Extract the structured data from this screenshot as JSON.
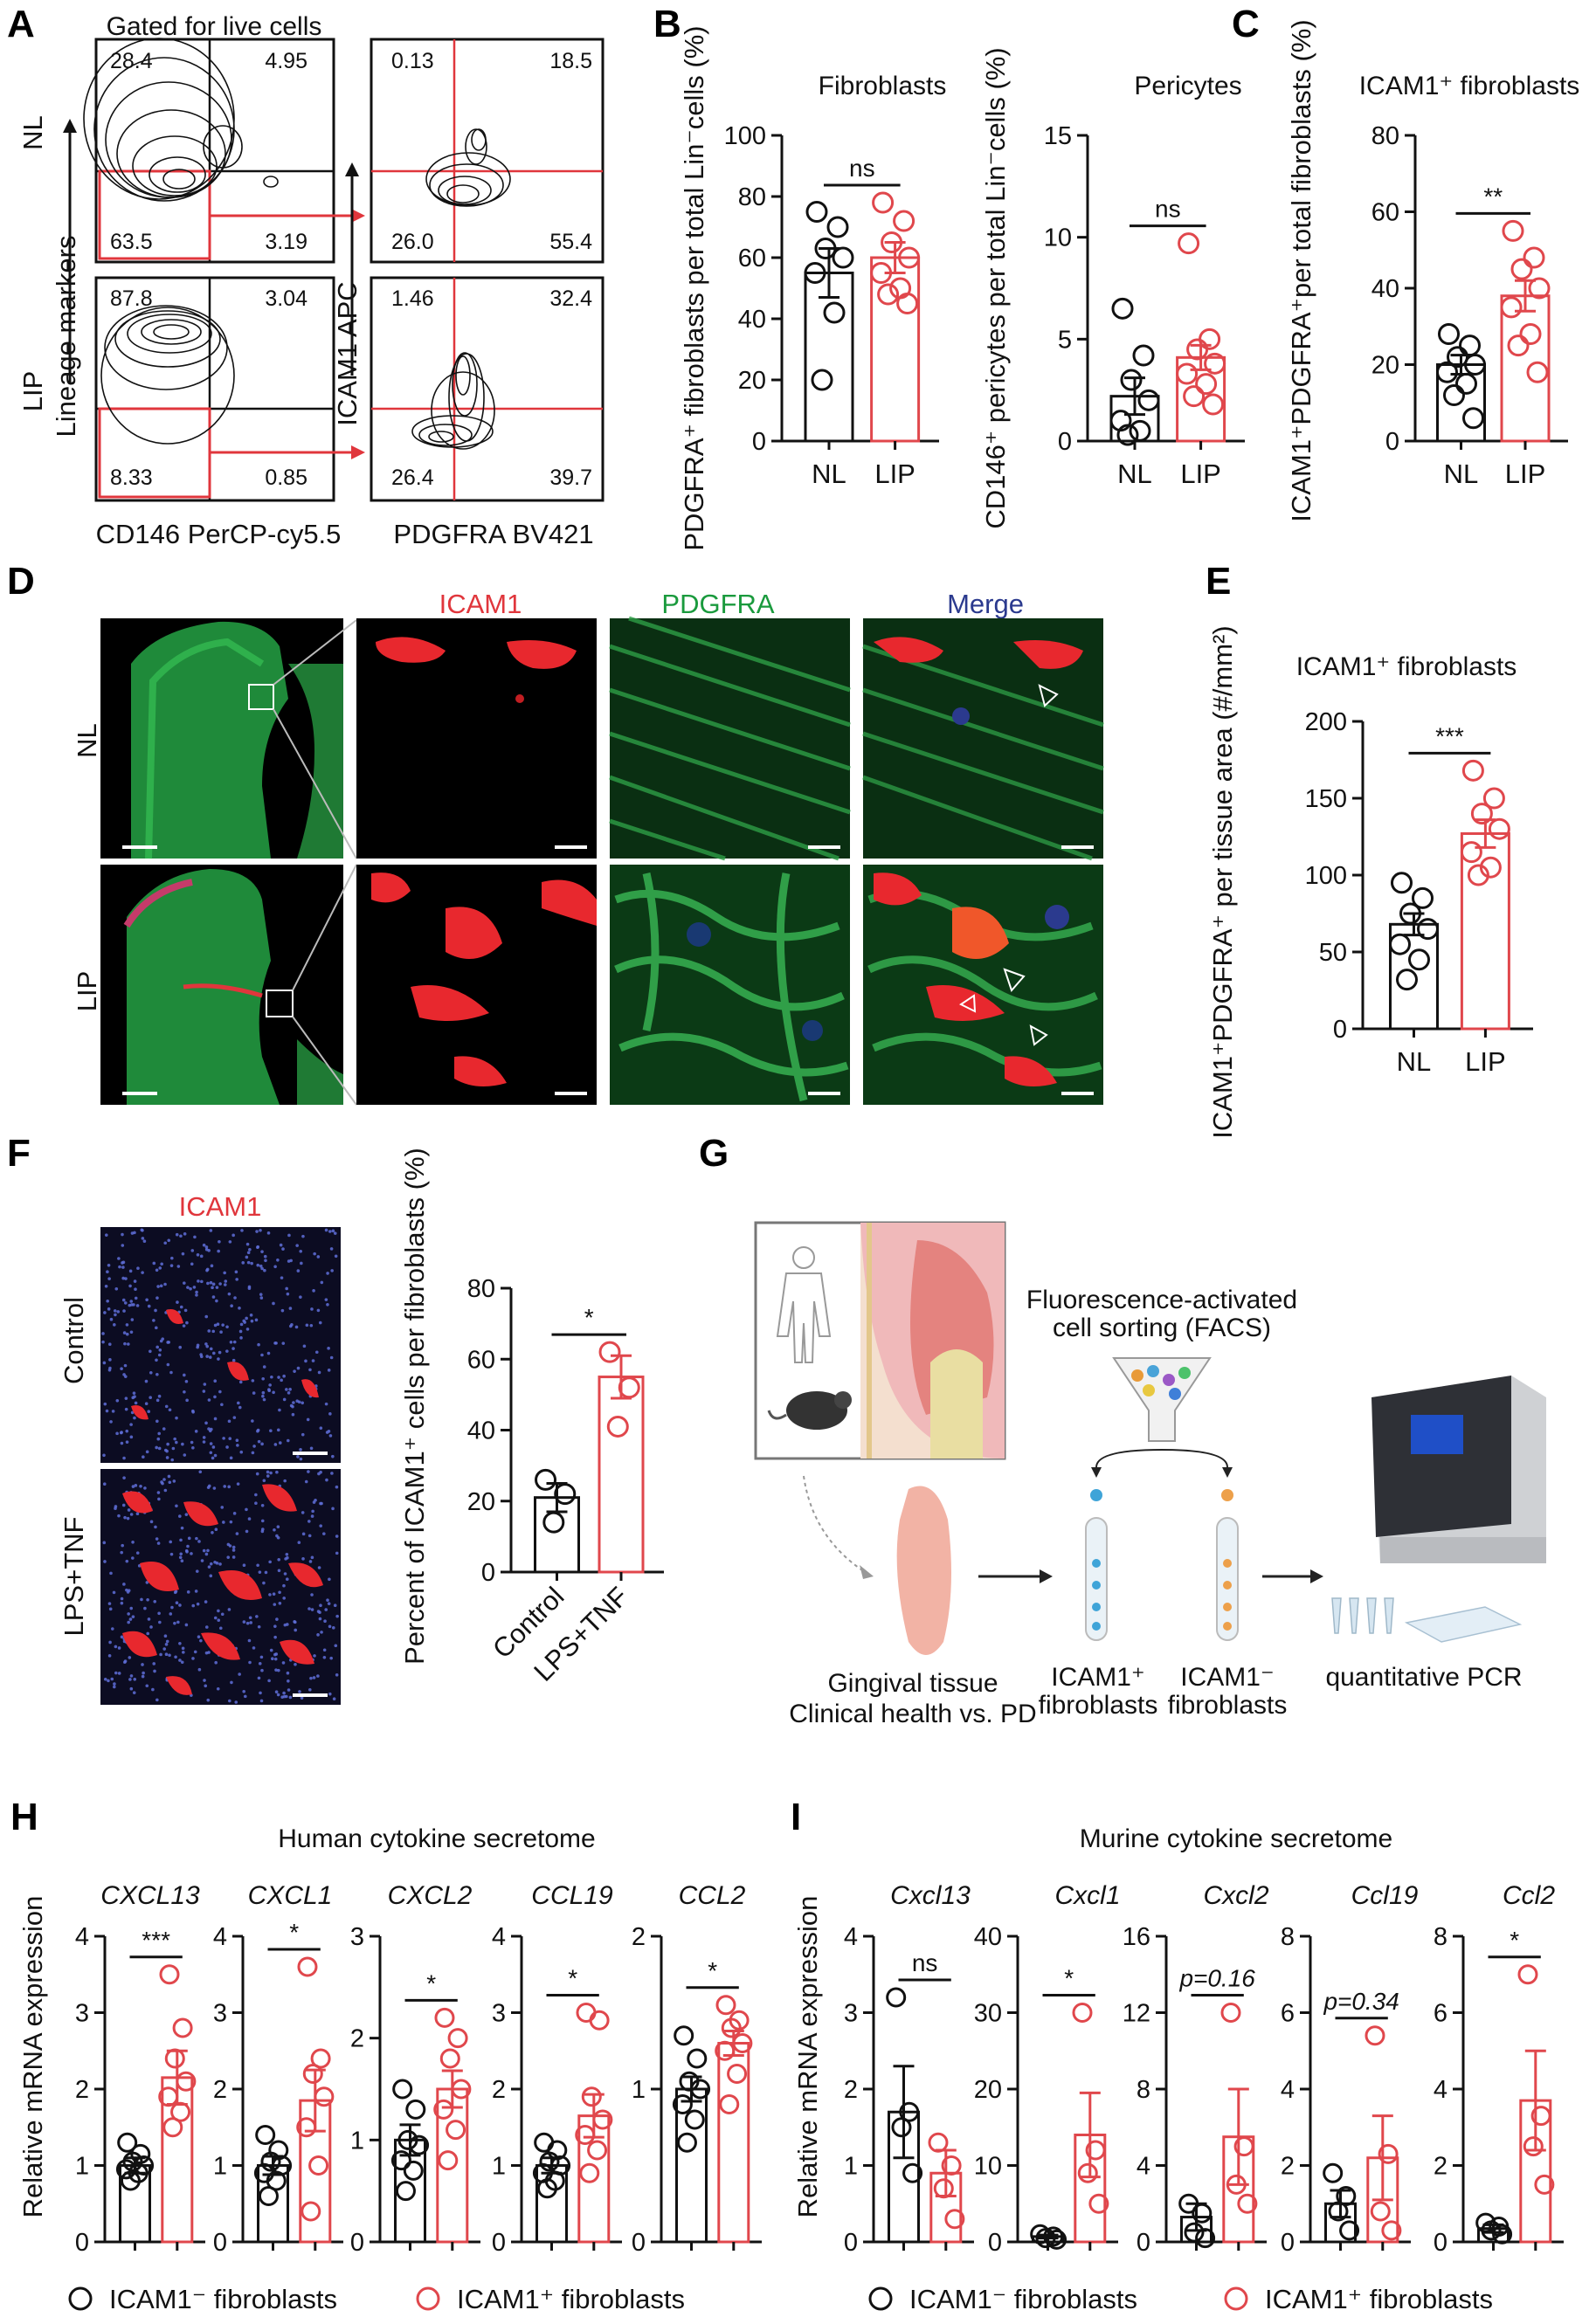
{
  "panels": {
    "A": "A",
    "B": "B",
    "C": "C",
    "D": "D",
    "E": "E",
    "F": "F",
    "G": "G",
    "H": "H",
    "I": "I"
  },
  "panelA": {
    "gate_title": "Gated for live cells",
    "rows": [
      "NL",
      "LIP"
    ],
    "y_label_left": "Lineage markers",
    "y_label_right": "ICAM1 APC",
    "x_label_left": "CD146 PerCP-cy5.5",
    "x_label_right": "PDGFRA BV421",
    "quadrants": {
      "NL_left": [
        "28.4",
        "4.95",
        "63.5",
        "3.19"
      ],
      "NL_right": [
        "0.13",
        "18.5",
        "26.0",
        "55.4"
      ],
      "LIP_left": [
        "87.8",
        "3.04",
        "8.33",
        "0.85"
      ],
      "LIP_right": [
        "1.46",
        "32.4",
        "26.4",
        "39.7"
      ]
    }
  },
  "panelD": {
    "cols": [
      "ICAM1",
      "PDGFRA",
      "Merge"
    ],
    "rows": [
      "NL",
      "LIP"
    ]
  },
  "panelF": {
    "stain": "ICAM1",
    "rows": [
      "Control",
      "LPS+TNF"
    ]
  },
  "panelG": {
    "facs_label_1": "Fluorescence-activated",
    "facs_label_2": "cell sorting (FACS)",
    "tissue_1": "Gingival tissue",
    "tissue_2": "Clinical health vs. PD",
    "pos_1": "ICAM1⁺",
    "pos_2": "fibroblasts",
    "neg_1": "ICAM1⁻",
    "neg_2": "fibroblasts",
    "pcr": "quantitative PCR"
  },
  "panelH": {
    "title": "Human cytokine secretome",
    "ylabel": "Relative mRNA expression"
  },
  "panelI": {
    "title": "Murine cytokine secretome",
    "ylabel": "Relative mRNA expression"
  },
  "legend": {
    "neg": "ICAM1⁻ fibroblasts",
    "pos": "ICAM1⁺ fibroblasts"
  },
  "chart_data": [
    {
      "id": "B1",
      "type": "bar",
      "title": "Fibroblasts",
      "ylabel": "PDGFRA⁺ fibroblasts per total Lin⁻cells (%)",
      "categories": [
        "NL",
        "LIP"
      ],
      "ylim": [
        0,
        100
      ],
      "yticks": [
        0,
        20,
        40,
        60,
        80,
        100
      ],
      "values": [
        55,
        60
      ],
      "err": [
        8,
        5
      ],
      "sig": "ns",
      "points": [
        [
          75,
          70,
          63,
          60,
          55,
          42,
          20
        ],
        [
          78,
          72,
          65,
          60,
          55,
          50,
          48,
          45
        ]
      ]
    },
    {
      "id": "B2",
      "type": "bar",
      "title": "Pericytes",
      "ylabel": "CD146⁺ pericytes per total Lin⁻cells (%)",
      "categories": [
        "NL",
        "LIP"
      ],
      "ylim": [
        0,
        15
      ],
      "yticks": [
        0,
        5,
        10,
        15
      ],
      "values": [
        2.2,
        4.1
      ],
      "err": [
        0.9,
        0.6
      ],
      "sig": "ns",
      "points": [
        [
          6.5,
          4.2,
          3.0,
          2.0,
          1.0,
          0.5,
          0.3
        ],
        [
          9.7,
          5.0,
          4.5,
          3.8,
          3.3,
          2.8,
          2.2,
          1.8
        ]
      ]
    },
    {
      "id": "C",
      "type": "bar",
      "title": "ICAM1⁺ fibroblasts",
      "ylabel": "ICAM1⁺PDGFRA⁺per total fibroblasts (%)",
      "categories": [
        "NL",
        "LIP"
      ],
      "ylim": [
        0,
        80
      ],
      "yticks": [
        0,
        20,
        40,
        60,
        80
      ],
      "values": [
        20,
        38
      ],
      "err": [
        2.5,
        4
      ],
      "sig": "**",
      "points": [
        [
          28,
          25,
          22,
          20,
          18,
          15,
          12,
          6
        ],
        [
          55,
          48,
          45,
          40,
          35,
          28,
          25,
          18
        ]
      ]
    },
    {
      "id": "E",
      "type": "bar",
      "title": "ICAM1⁺ fibroblasts",
      "ylabel": "ICAM1⁺PDGFRA⁺ per tissue area (#/mm²)",
      "categories": [
        "NL",
        "LIP"
      ],
      "ylim": [
        0,
        200
      ],
      "yticks": [
        0,
        50,
        100,
        150,
        200
      ],
      "values": [
        68,
        127
      ],
      "err": [
        7,
        9
      ],
      "sig": "***",
      "points": [
        [
          95,
          85,
          75,
          65,
          55,
          45,
          32
        ],
        [
          168,
          150,
          140,
          130,
          115,
          105,
          100
        ]
      ]
    },
    {
      "id": "F",
      "type": "bar",
      "title": "",
      "ylabel": "Percent of ICAM1⁺ cells per fibroblasts (%)",
      "categories": [
        "Control",
        "LPS+TNF"
      ],
      "ylim": [
        0,
        80
      ],
      "yticks": [
        0,
        20,
        40,
        60,
        80
      ],
      "values": [
        21,
        55
      ],
      "err": [
        4,
        6
      ],
      "sig": "*",
      "points": [
        [
          26,
          22,
          14
        ],
        [
          62,
          52,
          41
        ]
      ]
    },
    {
      "id": "H1",
      "type": "bar",
      "title": "CXCL13",
      "categories": [
        "ICAM1⁻",
        "ICAM1⁺"
      ],
      "ylim": [
        0,
        4
      ],
      "yticks": [
        0,
        1,
        2,
        3,
        4
      ],
      "values": [
        1.0,
        2.15
      ],
      "err": [
        0.1,
        0.35
      ],
      "sig": "***",
      "points": [
        [
          1.3,
          1.15,
          1.05,
          1.0,
          0.95,
          0.9,
          0.8
        ],
        [
          3.5,
          2.8,
          2.4,
          2.1,
          1.9,
          1.7,
          1.5
        ]
      ]
    },
    {
      "id": "H2",
      "type": "bar",
      "title": "CXCL1",
      "categories": [
        "ICAM1⁻",
        "ICAM1⁺"
      ],
      "ylim": [
        0,
        4
      ],
      "yticks": [
        0,
        1,
        2,
        3,
        4
      ],
      "values": [
        1.0,
        1.85
      ],
      "err": [
        0.12,
        0.4
      ],
      "sig": "*",
      "points": [
        [
          1.4,
          1.2,
          1.05,
          1.0,
          0.9,
          0.8,
          0.6
        ],
        [
          3.6,
          2.4,
          2.2,
          1.9,
          1.5,
          1.0,
          0.4
        ]
      ]
    },
    {
      "id": "H3",
      "type": "bar",
      "title": "CXCL2",
      "categories": [
        "ICAM1⁻",
        "ICAM1⁺"
      ],
      "ylim": [
        0,
        3
      ],
      "yticks": [
        0,
        1,
        2,
        3
      ],
      "values": [
        1.0,
        1.5
      ],
      "err": [
        0.15,
        0.18
      ],
      "sig": "*",
      "points": [
        [
          1.5,
          1.3,
          1.0,
          0.95,
          0.8,
          0.7,
          0.5
        ],
        [
          2.2,
          2.0,
          1.8,
          1.5,
          1.3,
          1.1,
          0.8
        ]
      ]
    },
    {
      "id": "H4",
      "type": "bar",
      "title": "CCL19",
      "categories": [
        "ICAM1⁻",
        "ICAM1⁺"
      ],
      "ylim": [
        0,
        4
      ],
      "yticks": [
        0,
        1,
        2,
        3,
        4
      ],
      "values": [
        1.0,
        1.65
      ],
      "err": [
        0.1,
        0.28
      ],
      "sig": "*",
      "points": [
        [
          1.3,
          1.2,
          1.05,
          1.0,
          0.9,
          0.8,
          0.7
        ],
        [
          3.0,
          2.9,
          1.9,
          1.6,
          1.4,
          1.2,
          0.9
        ]
      ]
    },
    {
      "id": "H5",
      "type": "bar",
      "title": "CCL2",
      "categories": [
        "ICAM1⁻",
        "ICAM1⁺"
      ],
      "ylim": [
        0,
        2
      ],
      "yticks": [
        0,
        1,
        2
      ],
      "values": [
        1.0,
        1.3
      ],
      "err": [
        0.08,
        0.08
      ],
      "sig": "*",
      "points": [
        [
          1.35,
          1.2,
          1.05,
          1.0,
          0.9,
          0.8,
          0.65
        ],
        [
          1.55,
          1.45,
          1.4,
          1.3,
          1.25,
          1.1,
          0.9
        ]
      ]
    },
    {
      "id": "I1",
      "type": "bar",
      "title": "Cxcl13",
      "categories": [
        "ICAM1⁻",
        "ICAM1⁺"
      ],
      "ylim": [
        0,
        4
      ],
      "yticks": [
        0,
        1,
        2,
        3,
        4
      ],
      "values": [
        1.7,
        0.9
      ],
      "err": [
        0.6,
        0.3
      ],
      "sig": "ns",
      "points": [
        [
          3.2,
          1.7,
          1.5,
          0.9
        ],
        [
          1.3,
          1.0,
          0.7,
          0.3
        ]
      ]
    },
    {
      "id": "I2",
      "type": "bar",
      "title": "Cxcl1",
      "categories": [
        "ICAM1⁻",
        "ICAM1⁺"
      ],
      "ylim": [
        0,
        40
      ],
      "yticks": [
        0,
        10,
        20,
        30,
        40
      ],
      "values": [
        0.7,
        14
      ],
      "err": [
        0.2,
        5.5
      ],
      "sig": "*",
      "points": [
        [
          1.0,
          0.7,
          0.5,
          0.3
        ],
        [
          30,
          12,
          9,
          5
        ]
      ]
    },
    {
      "id": "I3",
      "type": "bar",
      "title": "Cxcl2",
      "categories": [
        "ICAM1⁻",
        "ICAM1⁺"
      ],
      "ylim": [
        0,
        16
      ],
      "yticks": [
        0,
        4,
        8,
        12,
        16
      ],
      "values": [
        1.3,
        5.5
      ],
      "err": [
        0.7,
        2.5
      ],
      "sig": "p=0.16",
      "points": [
        [
          2.0,
          1.5,
          0.5,
          0.2
        ],
        [
          12,
          5,
          3,
          2
        ]
      ]
    },
    {
      "id": "I4",
      "type": "bar",
      "title": "Ccl19",
      "categories": [
        "ICAM1⁻",
        "ICAM1⁺"
      ],
      "ylim": [
        0,
        8
      ],
      "yticks": [
        0,
        2,
        4,
        6,
        8
      ],
      "values": [
        1.0,
        2.2
      ],
      "err": [
        0.35,
        1.1
      ],
      "sig": "p=0.34",
      "points": [
        [
          1.8,
          1.2,
          0.8,
          0.3
        ],
        [
          5.4,
          2.3,
          0.8,
          0.3
        ]
      ]
    },
    {
      "id": "I5",
      "type": "bar",
      "title": "Ccl2",
      "categories": [
        "ICAM1⁻",
        "ICAM1⁺"
      ],
      "ylim": [
        0,
        8
      ],
      "yticks": [
        0,
        2,
        4,
        6,
        8
      ],
      "values": [
        0.35,
        3.7
      ],
      "err": [
        0.1,
        1.3
      ],
      "sig": "*",
      "points": [
        [
          0.5,
          0.4,
          0.3,
          0.2
        ],
        [
          7.0,
          3.3,
          2.5,
          1.5
        ]
      ]
    }
  ]
}
